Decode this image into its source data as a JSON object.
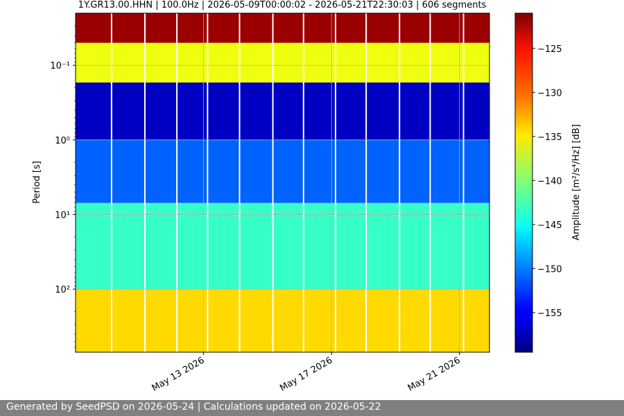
{
  "chart_data": {
    "type": "heatmap",
    "title": "1Y.GR13.00.HHN | 100.0Hz | 2026-05-09T00:00:02 - 2026-05-21T22:30:03 | 606 segments",
    "xlabel": "",
    "ylabel": "Period [s]",
    "x_start": "2026-05-09T00:00:02",
    "x_end": "2026-05-21T22:30:03",
    "x_ticks": [
      "May 13 2026",
      "May 17 2026",
      "May 21 2026"
    ],
    "y_scale": "log",
    "y_inverted": true,
    "ylim": [
      0.02,
      700
    ],
    "y_ticks": [
      "10⁻¹",
      "10⁰",
      "10¹",
      "10²"
    ],
    "grid": true,
    "colormap": "jet",
    "colorbar": {
      "label": "Amplitude [m²/s⁴/Hz] [dB]",
      "range": [
        -159.5,
        -121
      ],
      "ticks": [
        "−125",
        "−130",
        "−135",
        "−140",
        "−145",
        "−150",
        "−155"
      ]
    },
    "bands": [
      {
        "period_range": [
          0.02,
          0.05
        ],
        "amplitude_db": -122
      },
      {
        "period_range": [
          0.05,
          0.17
        ],
        "amplitude_db": -136
      },
      {
        "period_range": [
          0.17,
          1.0
        ],
        "amplitude_db": -157
      },
      {
        "period_range": [
          1.0,
          7.0
        ],
        "amplitude_db": -151
      },
      {
        "period_range": [
          7.0,
          100
        ],
        "amplitude_db": -143
      },
      {
        "period_range": [
          100,
          700
        ],
        "amplitude_db": -134
      }
    ],
    "segments": 606
  },
  "footer": {
    "text": "Generated by SeedPSD on 2026-05-24 | Calculations updated on 2026-05-22"
  }
}
